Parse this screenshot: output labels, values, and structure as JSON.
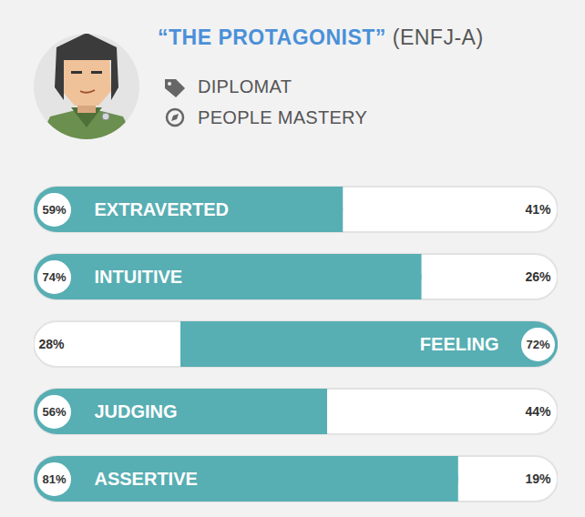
{
  "header": {
    "title": "“THE PROTAGONIST”",
    "type_code": "(ENFJ-A)",
    "tags": [
      "DIPLOMAT",
      "PEOPLE MASTERY"
    ]
  },
  "chart_data": {
    "type": "bar",
    "orientation": "horizontal",
    "stacked": true,
    "data_labels": true,
    "tick_labels": false,
    "categories": [
      "EXTRAVERTED",
      "INTUITIVE",
      "FEELING",
      "JUDGING",
      "ASSERTIVE"
    ],
    "xlim": [
      0,
      100
    ],
    "series": [
      {
        "values": [
          59,
          74,
          28,
          56,
          81
        ],
        "value_labels": [
          "59%",
          "74%",
          "28%",
          "56%",
          "81%"
        ],
        "colors": [
          "#57aeb3",
          "#57aeb3",
          "#ffffff",
          "#57aeb3",
          "#57aeb3"
        ]
      },
      {
        "values": [
          41,
          26,
          72,
          44,
          19
        ],
        "value_labels": [
          "41%",
          "26%",
          "72%",
          "44%",
          "19%"
        ],
        "colors": [
          "#ffffff",
          "#ffffff",
          "#57aeb3",
          "#ffffff",
          "#ffffff"
        ]
      }
    ]
  }
}
